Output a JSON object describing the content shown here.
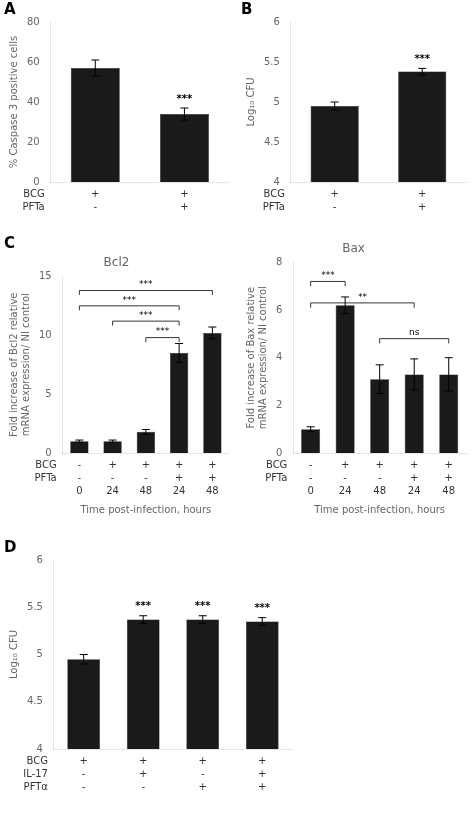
{
  "chart_data": [
    {
      "type": "bar",
      "panel_label": "A",
      "ylabel": "% Caspase 3 positive cells",
      "categories": [
        null,
        null
      ],
      "values": [
        57,
        34
      ],
      "errors": [
        4,
        3
      ],
      "color": "#1a1a1a",
      "ylim": [
        0,
        80
      ],
      "yticks": [
        0,
        20,
        40,
        60,
        80
      ],
      "grid": false,
      "tick_labels": "y",
      "sig": [
        null,
        "***"
      ],
      "rows": [
        {
          "name": "BCG",
          "values": [
            "+",
            "+"
          ]
        },
        {
          "name": "PFTa",
          "values": [
            "-",
            "+"
          ]
        }
      ]
    },
    {
      "type": "bar",
      "panel_label": "B",
      "ylabel": "Log₁₀ CFU",
      "categories": [
        null,
        null
      ],
      "values": [
        4.95,
        5.38
      ],
      "errors": [
        0.05,
        0.04
      ],
      "color": "#1a1a1a",
      "ylim": [
        4,
        6
      ],
      "yticks": [
        4,
        4.5,
        5,
        5.5,
        6
      ],
      "grid": false,
      "tick_labels": "y",
      "sig": [
        null,
        "***"
      ],
      "rows": [
        {
          "name": "BCG",
          "values": [
            "+",
            "+"
          ]
        },
        {
          "name": "PFTa",
          "values": [
            "-",
            "+"
          ]
        }
      ]
    },
    {
      "type": "bar",
      "panel_label": "C",
      "title": "Bcl2",
      "ylabel": "Fold increase of Bcl2 relative\nmRNA expression/ NI control",
      "xlabel": "Time post-infection, hours",
      "categories": [
        null,
        null,
        null,
        null,
        null
      ],
      "values": [
        1.0,
        1.0,
        1.8,
        8.5,
        10.2
      ],
      "errors": [
        0.1,
        0.1,
        0.2,
        0.8,
        0.5
      ],
      "color": "#1a1a1a",
      "ylim": [
        0,
        15
      ],
      "yticks": [
        0,
        5,
        10,
        15
      ],
      "grid": false,
      "tick_labels": "y",
      "brackets": [
        {
          "x1": 0,
          "x2": 3,
          "y": 12.5,
          "label": "***"
        },
        {
          "x1": 0,
          "x2": 4,
          "y": 13.8,
          "label": "***"
        },
        {
          "x1": 1,
          "x2": 3,
          "y": 11.2,
          "label": "***"
        },
        {
          "x1": 2,
          "x2": 3,
          "y": 9.8,
          "label": "***"
        }
      ],
      "rows": [
        {
          "name": "BCG",
          "values": [
            "-",
            "+",
            "+",
            "+",
            "+"
          ]
        },
        {
          "name": "PFTa",
          "values": [
            "-",
            "-",
            "-",
            "+",
            "+"
          ]
        },
        {
          "name": null,
          "values": [
            "0",
            "24",
            "48",
            "24",
            "48"
          ]
        }
      ]
    },
    {
      "type": "bar",
      "title": "Bax",
      "ylabel": "Fold increase of Bax relative\nmRNA expression/ NI control",
      "xlabel": "Time post-infection, hours",
      "categories": [
        null,
        null,
        null,
        null,
        null
      ],
      "values": [
        1.0,
        6.2,
        3.1,
        3.3,
        3.3
      ],
      "errors": [
        0.1,
        0.35,
        0.6,
        0.65,
        0.7
      ],
      "color": "#1a1a1a",
      "ylim": [
        0,
        8
      ],
      "yticks": [
        0,
        2,
        4,
        6,
        8
      ],
      "grid": false,
      "tick_labels": "y",
      "brackets": [
        {
          "x1": 0,
          "x2": 1,
          "y": 7.2,
          "label": "***"
        },
        {
          "x1": 0,
          "x2": 3,
          "y": 6.3,
          "label": "**"
        },
        {
          "x1": 2,
          "x2": 4,
          "y": 4.8,
          "label": "ns"
        }
      ],
      "rows": [
        {
          "name": "BCG",
          "values": [
            "-",
            "+",
            "+",
            "+",
            "+"
          ]
        },
        {
          "name": "PFTa",
          "values": [
            "-",
            "-",
            "-",
            "+",
            "+"
          ]
        },
        {
          "name": null,
          "values": [
            "0",
            "24",
            "48",
            "24",
            "48"
          ]
        }
      ]
    },
    {
      "type": "bar",
      "panel_label": "D",
      "ylabel": "Log₁₀ CFU",
      "categories": [
        null,
        null,
        null,
        null
      ],
      "values": [
        4.95,
        5.37,
        5.37,
        5.35
      ],
      "errors": [
        0.05,
        0.04,
        0.04,
        0.04
      ],
      "color": "#1a1a1a",
      "ylim": [
        4,
        6
      ],
      "yticks": [
        4,
        4.5,
        5,
        5.5,
        6
      ],
      "grid": false,
      "tick_labels": "y",
      "sig": [
        null,
        "***",
        "***",
        "***"
      ],
      "rows": [
        {
          "name": "BCG",
          "values": [
            "+",
            "+",
            "+",
            "+"
          ]
        },
        {
          "name": "IL-17",
          "values": [
            "-",
            "+",
            "-",
            "+"
          ]
        },
        {
          "name": "PFTα",
          "values": [
            "-",
            "-",
            "+",
            "+"
          ]
        }
      ]
    }
  ]
}
